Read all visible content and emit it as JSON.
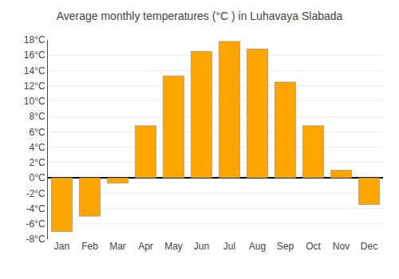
{
  "chart_data": {
    "type": "bar",
    "title": "Average monthly temperatures (°C ) in Luhavaya Slabada",
    "categories": [
      "Jan",
      "Feb",
      "Mar",
      "Apr",
      "May",
      "Jun",
      "Jul",
      "Aug",
      "Sep",
      "Oct",
      "Nov",
      "Dec"
    ],
    "values": [
      -7,
      -5,
      -0.7,
      6.8,
      13.3,
      16.5,
      17.8,
      16.8,
      12.5,
      6.8,
      1.0,
      -3.5
    ],
    "color": "#FFA500",
    "ylim": [
      -8,
      18
    ],
    "yticks": [
      {
        "value": -8,
        "label": "-8°C"
      },
      {
        "value": -6,
        "label": "-6°C"
      },
      {
        "value": -4,
        "label": "-4°C"
      },
      {
        "value": -2,
        "label": "-2°C"
      },
      {
        "value": 0,
        "label": "0°C"
      },
      {
        "value": 2,
        "label": "2°C"
      },
      {
        "value": 4,
        "label": "4°C"
      },
      {
        "value": 6,
        "label": "6°C"
      },
      {
        "value": 8,
        "label": "8°C"
      },
      {
        "value": 10,
        "label": "10°C"
      },
      {
        "value": 12,
        "label": "12°C"
      },
      {
        "value": 14,
        "label": "14°C"
      },
      {
        "value": 16,
        "label": "16°C"
      },
      {
        "value": 18,
        "label": "18°C"
      }
    ],
    "grid": true
  }
}
